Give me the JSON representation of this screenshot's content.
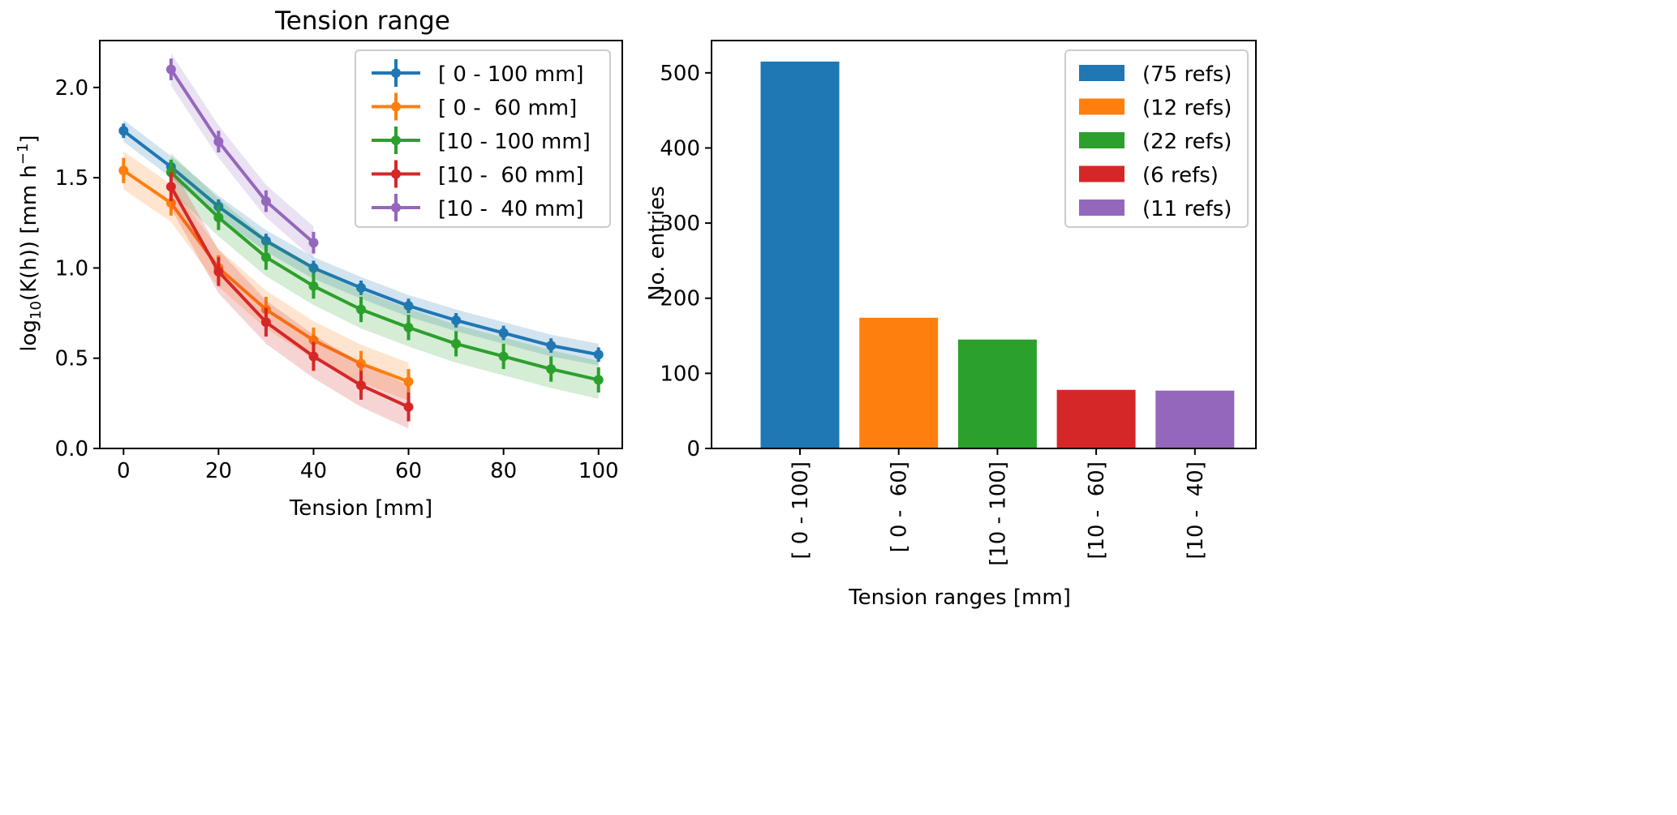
{
  "chart_data": [
    {
      "type": "line",
      "title": "Tension range",
      "xlabel": "Tension [mm]",
      "ylabel": "log10(K(h)) [mm h^-1]",
      "xlim": [
        -5,
        105
      ],
      "ylim": [
        0,
        2.26
      ],
      "xticks": [
        0,
        20,
        40,
        60,
        80,
        100
      ],
      "yticks": [
        0.0,
        0.5,
        1.0,
        1.5,
        2.0
      ],
      "ytick_labels": [
        "0.0",
        "0.5",
        "1.0",
        "1.5",
        "2.0"
      ],
      "legend_position": "top-right",
      "series": [
        {
          "name": "[ 0 - 100 mm]",
          "color": "#1f77b4",
          "x": [
            0,
            10,
            20,
            30,
            40,
            50,
            60,
            70,
            80,
            90,
            100
          ],
          "y": [
            1.76,
            1.56,
            1.34,
            1.15,
            1.0,
            0.89,
            0.79,
            0.71,
            0.64,
            0.57,
            0.52
          ],
          "err": 0.04
        },
        {
          "name": "[ 0 -  60 mm]",
          "color": "#ff7f0e",
          "x": [
            0,
            10,
            20,
            30,
            40,
            50,
            60
          ],
          "y": [
            1.54,
            1.36,
            1.0,
            0.77,
            0.6,
            0.47,
            0.37
          ],
          "err": 0.07
        },
        {
          "name": "[10 - 100 mm]",
          "color": "#2ca02c",
          "x": [
            10,
            20,
            30,
            40,
            50,
            60,
            70,
            80,
            90,
            100
          ],
          "y": [
            1.53,
            1.28,
            1.06,
            0.9,
            0.77,
            0.67,
            0.58,
            0.51,
            0.44,
            0.38
          ],
          "err": 0.07
        },
        {
          "name": "[10 -  60 mm]",
          "color": "#d62728",
          "x": [
            10,
            20,
            30,
            40,
            50,
            60
          ],
          "y": [
            1.45,
            0.98,
            0.7,
            0.51,
            0.35,
            0.23
          ],
          "err": 0.08
        },
        {
          "name": "[10 -  40 mm]",
          "color": "#9467bd",
          "x": [
            10,
            20,
            30,
            40
          ],
          "y": [
            2.1,
            1.7,
            1.37,
            1.14
          ],
          "err": 0.06
        }
      ]
    },
    {
      "type": "bar",
      "xlabel": "Tension ranges [mm]",
      "ylabel": "No. entries",
      "ylim": [
        0,
        543
      ],
      "yticks": [
        0,
        100,
        200,
        300,
        400,
        500
      ],
      "categories": [
        "[ 0 - 100]",
        "[ 0 -  60]",
        "[10 - 100]",
        "[10 -  60]",
        "[10 -  40]"
      ],
      "values": [
        515,
        174,
        145,
        78,
        77
      ],
      "colors": [
        "#1f77b4",
        "#ff7f0e",
        "#2ca02c",
        "#d62728",
        "#9467bd"
      ],
      "legend": [
        "(75 refs)",
        "(12 refs)",
        "(22 refs)",
        "(6 refs)",
        "(11 refs)"
      ],
      "legend_position": "top-right"
    }
  ]
}
